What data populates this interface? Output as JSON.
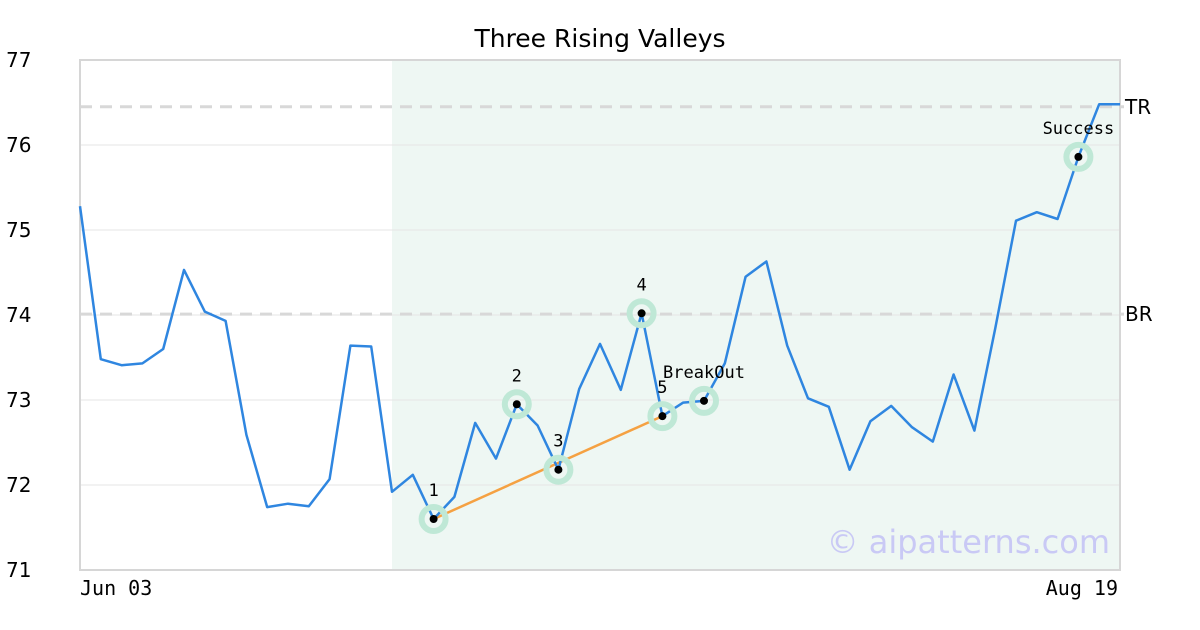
{
  "chart_data": {
    "type": "line",
    "title": "Three Rising Valleys",
    "xlabel": "",
    "ylabel": "",
    "ylim": [
      71,
      77
    ],
    "yticks": [
      71,
      72,
      73,
      74,
      75,
      76,
      77
    ],
    "x_start_label": "Jun 03",
    "x_end_label": "Aug 19",
    "series": [
      {
        "values": [
          75.28,
          73.48,
          73.41,
          73.43,
          73.6,
          74.53,
          74.04,
          73.93,
          72.59,
          71.74,
          71.78,
          71.75,
          72.07,
          73.64,
          73.63,
          71.92,
          72.12,
          71.6,
          71.86,
          72.73,
          72.31,
          72.95,
          72.7,
          72.18,
          73.13,
          73.66,
          73.12,
          74.02,
          72.81,
          72.97,
          72.99,
          73.43,
          74.45,
          74.63,
          73.64,
          73.02,
          72.92,
          72.18,
          72.75,
          72.93,
          72.68,
          72.51,
          73.3,
          72.64,
          73.84,
          75.11,
          75.21,
          75.13,
          75.86,
          76.48,
          76.48
        ]
      }
    ],
    "highlight_range": {
      "start_index": 15,
      "end_index": 50
    },
    "levels": [
      {
        "label": "TR",
        "value": 76.45
      },
      {
        "label": "BR",
        "value": 74.01
      }
    ],
    "points": [
      {
        "label": "1",
        "index": 17,
        "value": 71.6
      },
      {
        "label": "2",
        "index": 21,
        "value": 72.95
      },
      {
        "label": "3",
        "index": 23,
        "value": 72.18
      },
      {
        "label": "4",
        "index": 27,
        "value": 74.02
      },
      {
        "label": "5",
        "index": 28,
        "value": 72.81
      },
      {
        "label": "BreakOut",
        "index": 30,
        "value": 72.99
      },
      {
        "label": "Success",
        "index": 48,
        "value": 75.86
      }
    ],
    "trendline": {
      "from_point": "1",
      "to_point": "5"
    },
    "watermark": "© aipatterns.com",
    "grid": true,
    "colors": {
      "line": "#2f86e0",
      "trendline": "#f5a142",
      "highlight": "#eef7f3",
      "marker_ring": "#bfe8d6",
      "level": "#d8d8d8",
      "grid": "#e6e6e6",
      "frame": "#d6d6d6"
    }
  }
}
